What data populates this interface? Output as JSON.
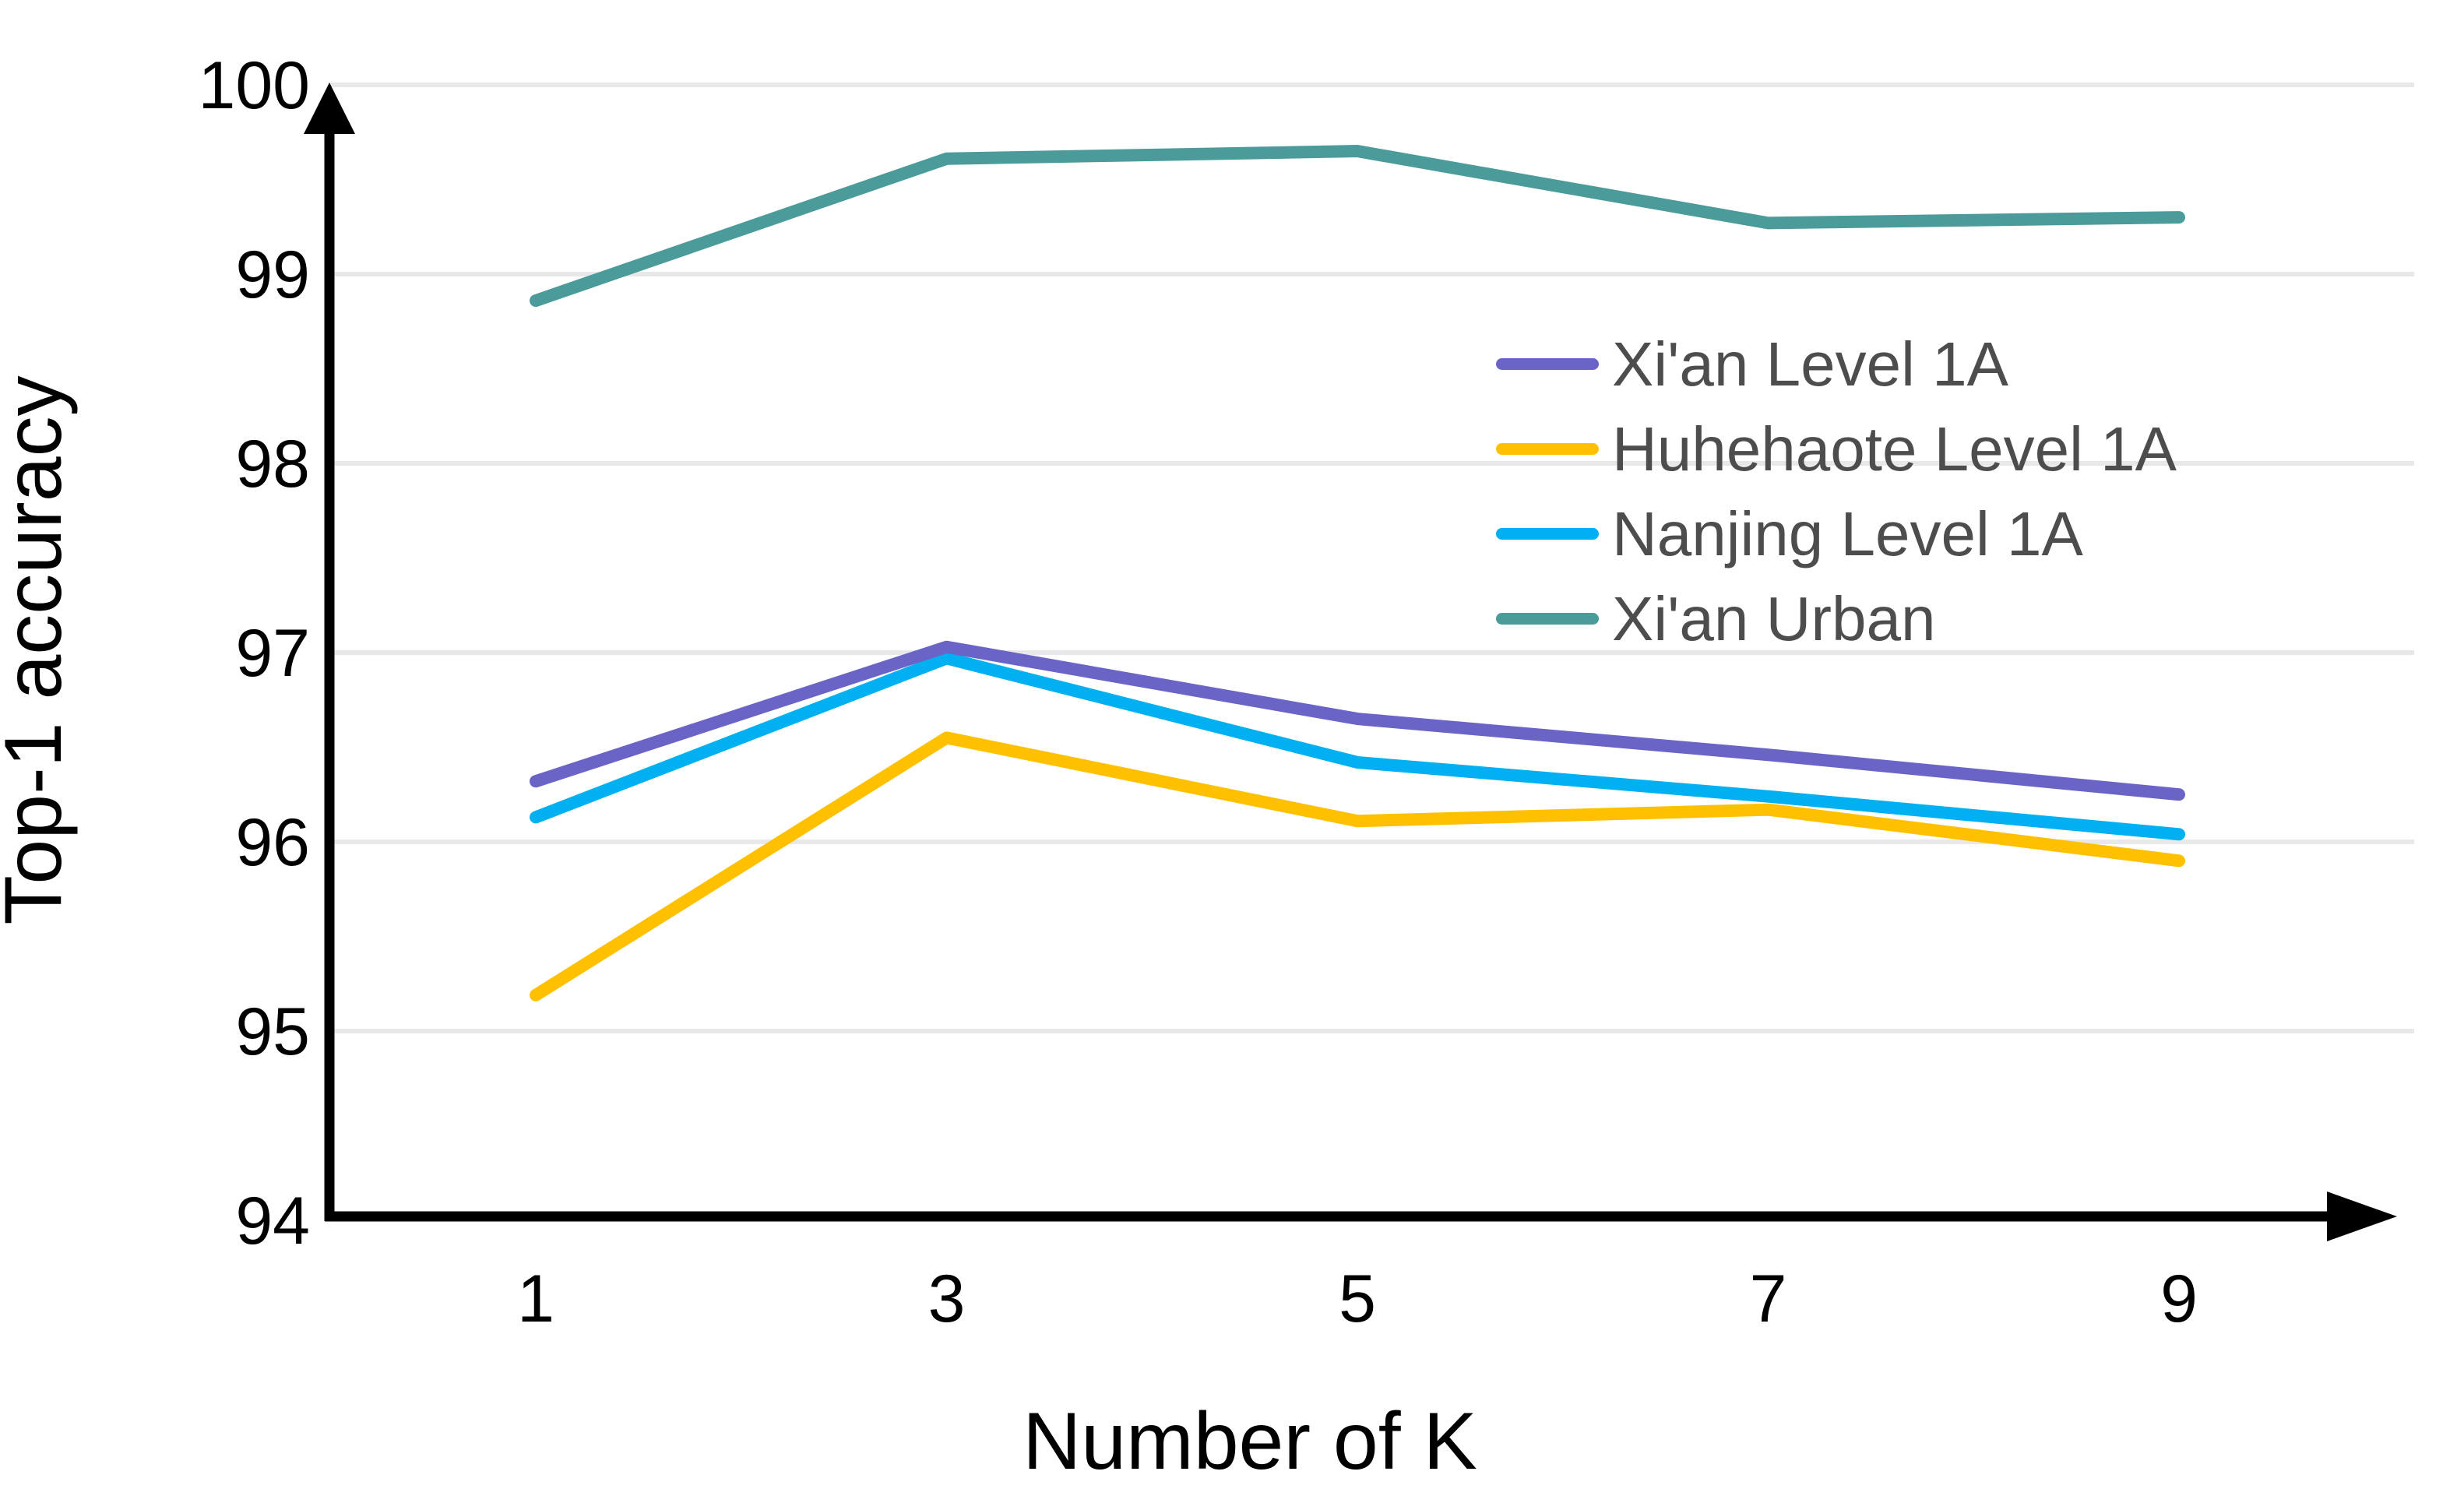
{
  "chart_data": {
    "type": "line",
    "title": "",
    "xlabel": "Number of K",
    "ylabel": "Top-1 accuracy",
    "x": [
      1,
      3,
      5,
      7,
      9
    ],
    "x_tick_labels": [
      "1",
      "3",
      "5",
      "7",
      "9"
    ],
    "y_ticks": [
      94,
      95,
      96,
      97,
      98,
      99,
      100
    ],
    "ylim": [
      94,
      100
    ],
    "grid": true,
    "legend_position": "inside-upper-right",
    "series": [
      {
        "name": "Xi'an Level 1A",
        "color": "#6964C6",
        "values": [
          96.32,
          97.03,
          96.65,
          96.46,
          96.25
        ]
      },
      {
        "name": "Huhehaote Level 1A",
        "color": "#FFC000",
        "values": [
          95.19,
          96.55,
          96.11,
          96.17,
          95.9
        ]
      },
      {
        "name": "Nanjing Level 1A",
        "color": "#00B0F0",
        "values": [
          96.13,
          96.97,
          96.42,
          96.24,
          96.04
        ]
      },
      {
        "name": "Xi'an Urban",
        "color": "#4A9B99",
        "values": [
          98.86,
          99.61,
          99.65,
          99.27,
          99.3
        ]
      }
    ]
  },
  "style": {
    "axis_color": "#000000",
    "grid_color": "#E8E8E8",
    "tick_label_color": "#000000",
    "legend_text_color": "#4D4D4D",
    "background": "#FFFFFF"
  }
}
